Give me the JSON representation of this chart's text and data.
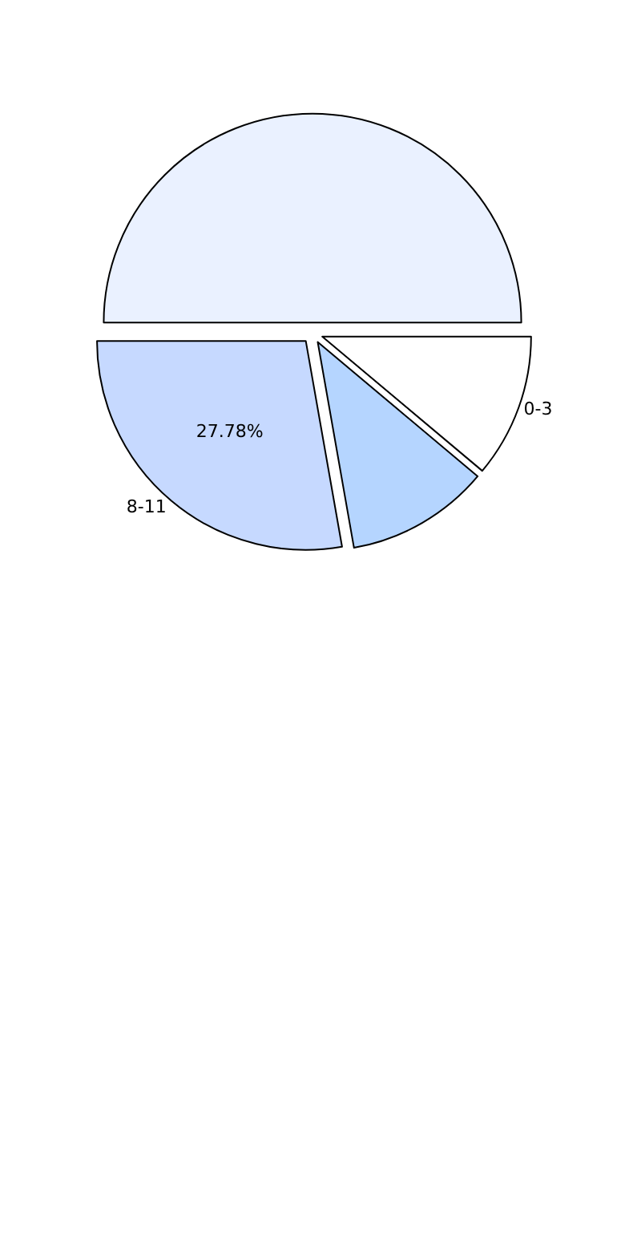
{
  "chart_data": {
    "type": "pie",
    "categories": [
      "0-3",
      null,
      "8-11",
      null
    ],
    "values": [
      11.11,
      50,
      27.78,
      11.11
    ],
    "colors": [
      "#ffffff",
      "#eaf1ff",
      "#c6d9ff",
      "#b5d5ff"
    ],
    "value_labels": [
      null,
      null,
      "27.78%",
      null
    ],
    "legend": false
  }
}
